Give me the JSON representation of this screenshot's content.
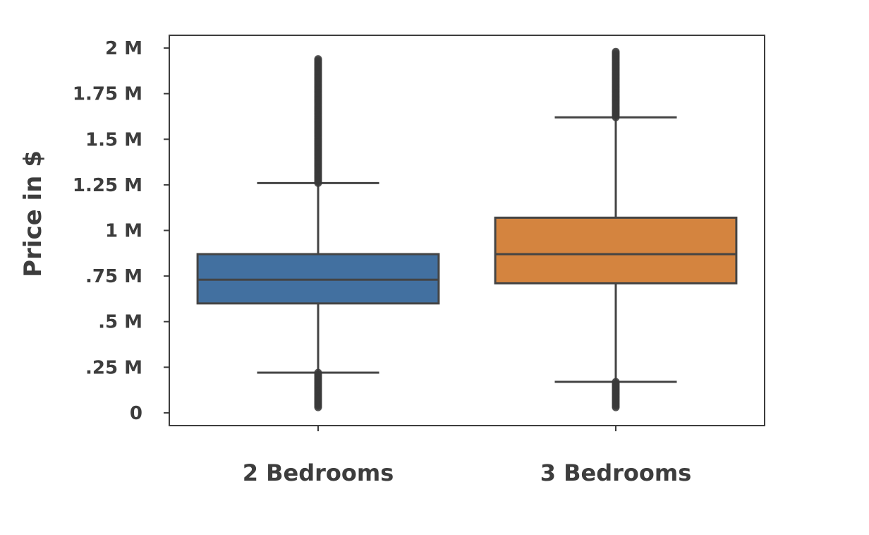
{
  "chart_data": {
    "type": "box",
    "title": "",
    "xlabel": "",
    "ylabel": "Price in $",
    "ylim": [
      -0.07,
      2.07
    ],
    "y_unit": "M",
    "y_ticks": [
      {
        "value": 0,
        "label": "0"
      },
      {
        "value": 0.25,
        "label": ".25 M"
      },
      {
        "value": 0.5,
        "label": ".5 M"
      },
      {
        "value": 0.75,
        "label": ".75 M"
      },
      {
        "value": 1.0,
        "label": "1 M"
      },
      {
        "value": 1.25,
        "label": "1.25 M"
      },
      {
        "value": 1.5,
        "label": "1.5 M"
      },
      {
        "value": 1.75,
        "label": "1.75 M"
      },
      {
        "value": 2.0,
        "label": "2 M"
      }
    ],
    "categories": [
      "2 Bedrooms",
      "3 Bedrooms"
    ],
    "boxes": [
      {
        "category": "2 Bedrooms",
        "color": "#4270a0",
        "whisker_low": 0.22,
        "q1": 0.6,
        "median": 0.73,
        "q3": 0.87,
        "whisker_high": 1.26,
        "outliers_low_range": [
          0.03,
          0.22
        ],
        "outliers_high_range": [
          1.26,
          1.94
        ]
      },
      {
        "category": "3 Bedrooms",
        "color": "#d4843f",
        "whisker_low": 0.17,
        "q1": 0.71,
        "median": 0.87,
        "q3": 1.07,
        "whisker_high": 1.62,
        "outliers_low_range": [
          0.03,
          0.17
        ],
        "outliers_high_range": [
          1.62,
          1.98
        ]
      }
    ],
    "grid": false,
    "legend": "none"
  }
}
